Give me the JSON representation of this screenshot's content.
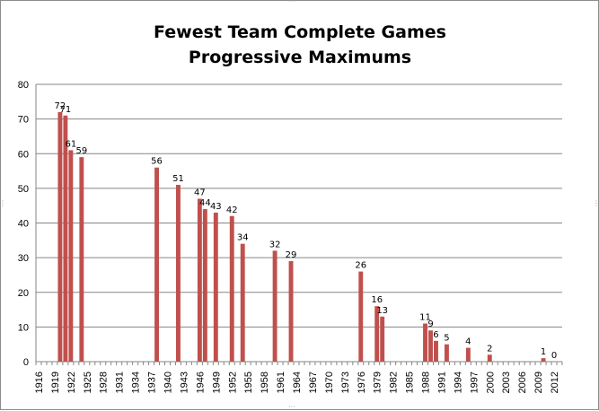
{
  "chart_data": {
    "type": "bar",
    "title": [
      "Fewest Team Complete Games",
      "Progressive Maximums"
    ],
    "xlabel": "",
    "ylabel": "",
    "ylim": [
      0,
      80
    ],
    "yticks": [
      0,
      10,
      20,
      30,
      40,
      50,
      60,
      70,
      80
    ],
    "grid": true,
    "legend": "none",
    "bar_color": "#c0504d",
    "categories": [
      "1916",
      "1917",
      "1918",
      "1919",
      "1920",
      "1921",
      "1922",
      "1923",
      "1924",
      "1925",
      "1926",
      "1927",
      "1928",
      "1929",
      "1930",
      "1931",
      "1932",
      "1933",
      "1934",
      "1935",
      "1936",
      "1937",
      "1938",
      "1939",
      "1940",
      "1941",
      "1942",
      "1943",
      "1944",
      "1945",
      "1946",
      "1947",
      "1948",
      "1949",
      "1950",
      "1951",
      "1952",
      "1953",
      "1954",
      "1955",
      "1956",
      "1957",
      "1958",
      "1959",
      "1960",
      "1961",
      "1962",
      "1963",
      "1964",
      "1965",
      "1966",
      "1967",
      "1968",
      "1969",
      "1970",
      "1971",
      "1972",
      "1973",
      "1974",
      "1975",
      "1976",
      "1977",
      "1978",
      "1979",
      "1980",
      "1981",
      "1982",
      "1983",
      "1984",
      "1985",
      "1986",
      "1987",
      "1988",
      "1989",
      "1990",
      "1991",
      "1992",
      "1993",
      "1994",
      "1995",
      "1996",
      "1997",
      "1998",
      "1999",
      "2000",
      "2001",
      "2002",
      "2003",
      "2004",
      "2005",
      "2006",
      "2007",
      "2008",
      "2009",
      "2010",
      "2011",
      "2012",
      "2013"
    ],
    "tick_labels": [
      "1916",
      "1919",
      "1922",
      "1925",
      "1928",
      "1931",
      "1934",
      "1937",
      "1940",
      "1943",
      "1946",
      "1949",
      "1952",
      "1955",
      "1958",
      "1961",
      "1964",
      "1967",
      "1970",
      "1973",
      "1976",
      "1979",
      "1982",
      "1985",
      "1988",
      "1991",
      "1994",
      "1997",
      "2000",
      "2003",
      "2006",
      "2009",
      "2012"
    ],
    "points": [
      {
        "x": "1920",
        "y": 72,
        "label": "72"
      },
      {
        "x": "1921",
        "y": 71,
        "label": "71"
      },
      {
        "x": "1922",
        "y": 61,
        "label": "61"
      },
      {
        "x": "1924",
        "y": 59,
        "label": "59"
      },
      {
        "x": "1938",
        "y": 56,
        "label": "56"
      },
      {
        "x": "1942",
        "y": 51,
        "label": "51"
      },
      {
        "x": "1946",
        "y": 47,
        "label": "47"
      },
      {
        "x": "1947",
        "y": 44,
        "label": "44"
      },
      {
        "x": "1949",
        "y": 43,
        "label": "43"
      },
      {
        "x": "1952",
        "y": 42,
        "label": "42"
      },
      {
        "x": "1954",
        "y": 34,
        "label": "34"
      },
      {
        "x": "1960",
        "y": 32,
        "label": "32"
      },
      {
        "x": "1963",
        "y": 29,
        "label": "29"
      },
      {
        "x": "1976",
        "y": 26,
        "label": "26"
      },
      {
        "x": "1979",
        "y": 16,
        "label": "16"
      },
      {
        "x": "1980",
        "y": 13,
        "label": "13"
      },
      {
        "x": "1988",
        "y": 11,
        "label": "11"
      },
      {
        "x": "1989",
        "y": 9,
        "label": "9"
      },
      {
        "x": "1990",
        "y": 6,
        "label": "6"
      },
      {
        "x": "1992",
        "y": 5,
        "label": "5"
      },
      {
        "x": "1996",
        "y": 4,
        "label": "4"
      },
      {
        "x": "2000",
        "y": 2,
        "label": "2"
      },
      {
        "x": "2010",
        "y": 1,
        "label": "1"
      },
      {
        "x": "2012",
        "y": 0,
        "label": "0"
      }
    ]
  }
}
